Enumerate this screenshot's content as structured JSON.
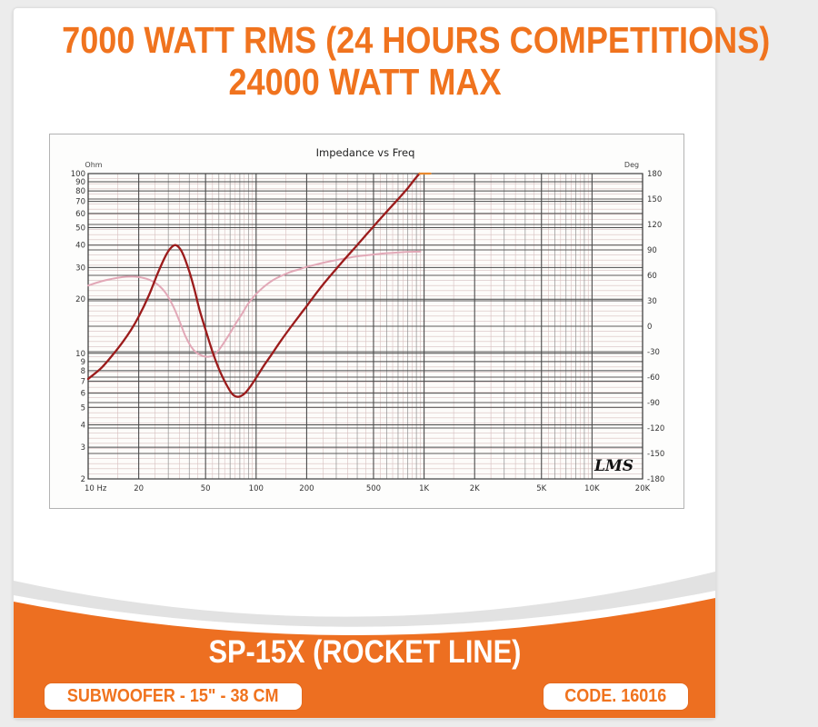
{
  "header": {
    "line1": "7000 WATT RMS (24 HOURS COMPETITIONS)",
    "line2": "24000 WATT MAX",
    "text_color": "#f0731e"
  },
  "chart_data": {
    "type": "line",
    "title": "Impedance vs Freq",
    "watermark": "LMS",
    "grid": "log-log with degree overlay, dark majors and pink minors",
    "x_axis": {
      "scale": "log",
      "min": 10,
      "max": 20000,
      "unit": "Hz",
      "tick_labels": [
        "10 Hz",
        "20",
        "50",
        "100",
        "200",
        "500",
        "1K",
        "2K",
        "5K",
        "10K",
        "20K"
      ],
      "tick_values": [
        10,
        20,
        50,
        100,
        200,
        500,
        1000,
        2000,
        5000,
        10000,
        20000
      ]
    },
    "y_left": {
      "label": "Ohm",
      "scale": "log",
      "min": 2,
      "max": 100,
      "ticks": [
        100,
        90,
        80,
        70,
        60,
        50,
        40,
        30,
        20,
        10,
        9,
        8,
        7,
        6,
        5,
        4,
        3,
        2
      ]
    },
    "y_right": {
      "label": "Deg",
      "scale": "linear",
      "min": -180,
      "max": 180,
      "step": 30,
      "ticks": [
        180,
        150,
        120,
        90,
        60,
        30,
        0,
        -30,
        -60,
        -90,
        -120,
        -150,
        -180
      ]
    },
    "series": [
      {
        "name": "phase",
        "axis": "right",
        "color": "#e2a8b7",
        "width": 2,
        "points": [
          [
            10,
            48
          ],
          [
            12,
            53
          ],
          [
            14,
            56
          ],
          [
            16,
            58
          ],
          [
            18,
            58.5
          ],
          [
            20,
            58
          ],
          [
            23,
            55
          ],
          [
            26,
            49
          ],
          [
            29,
            39
          ],
          [
            32,
            24
          ],
          [
            35,
            6
          ],
          [
            38,
            -12
          ],
          [
            41,
            -24
          ],
          [
            44,
            -31
          ],
          [
            48,
            -35
          ],
          [
            52,
            -36
          ],
          [
            56,
            -34
          ],
          [
            60,
            -28
          ],
          [
            65,
            -18
          ],
          [
            70,
            -8
          ],
          [
            76,
            4
          ],
          [
            82,
            14
          ],
          [
            90,
            27
          ],
          [
            100,
            38
          ],
          [
            112,
            47
          ],
          [
            125,
            54
          ],
          [
            140,
            59
          ],
          [
            160,
            64
          ],
          [
            180,
            67
          ],
          [
            200,
            70
          ],
          [
            230,
            73
          ],
          [
            260,
            75.5
          ],
          [
            300,
            78
          ],
          [
            350,
            80.5
          ],
          [
            400,
            82.5
          ],
          [
            470,
            84
          ],
          [
            550,
            85.5
          ],
          [
            650,
            86.5
          ],
          [
            780,
            87.5
          ],
          [
            950,
            88
          ]
        ]
      },
      {
        "name": "impedance",
        "axis": "left",
        "color": "#9b1b1b",
        "width": 2.3,
        "points": [
          [
            10,
            7.2
          ],
          [
            12,
            8.3
          ],
          [
            14,
            9.8
          ],
          [
            16,
            11.5
          ],
          [
            18,
            13.5
          ],
          [
            20,
            16
          ],
          [
            23,
            21
          ],
          [
            26,
            28
          ],
          [
            29,
            35
          ],
          [
            31,
            38.5
          ],
          [
            33,
            40
          ],
          [
            35,
            38.5
          ],
          [
            37,
            35
          ],
          [
            40,
            28.5
          ],
          [
            43,
            22.5
          ],
          [
            46,
            17.5
          ],
          [
            50,
            13.5
          ],
          [
            55,
            10.2
          ],
          [
            60,
            8.2
          ],
          [
            66,
            6.8
          ],
          [
            72,
            5.95
          ],
          [
            78,
            5.72
          ],
          [
            85,
            5.95
          ],
          [
            92,
            6.5
          ],
          [
            100,
            7.3
          ],
          [
            110,
            8.4
          ],
          [
            125,
            10
          ],
          [
            140,
            11.7
          ],
          [
            160,
            13.9
          ],
          [
            180,
            16.1
          ],
          [
            200,
            18.3
          ],
          [
            230,
            21.8
          ],
          [
            260,
            25.2
          ],
          [
            300,
            29.5
          ],
          [
            350,
            34.8
          ],
          [
            400,
            40
          ],
          [
            460,
            46.5
          ],
          [
            530,
            54
          ],
          [
            600,
            61.5
          ],
          [
            700,
            72
          ],
          [
            800,
            83
          ],
          [
            880,
            93
          ],
          [
            940,
            100
          ]
        ]
      },
      {
        "name": "impedance-clip-cap",
        "axis": "left",
        "color": "#e8872c",
        "width": 2.3,
        "points": [
          [
            940,
            100
          ],
          [
            1090,
            100
          ]
        ]
      }
    ]
  },
  "footer": {
    "band_color": "#ed6f21",
    "swoosh_gray": "#e2e2e2",
    "title": "SP-15X (ROCKET LINE)",
    "left_badge": "SUBWOOFER - 15\" - 38 CM",
    "right_badge": "CODE. 16016"
  }
}
